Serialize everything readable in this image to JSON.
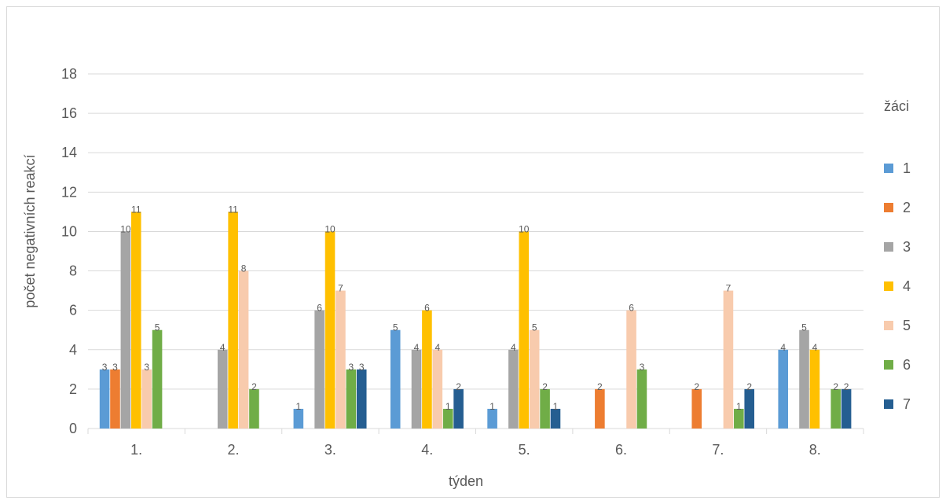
{
  "chart_data": {
    "type": "bar",
    "title": "",
    "xlabel": "týden",
    "ylabel": "počet negativních reakcí",
    "ylim": [
      0,
      18
    ],
    "yticks": [
      0,
      2,
      4,
      6,
      8,
      10,
      12,
      14,
      16,
      18
    ],
    "grid": true,
    "legend_title": "žáci",
    "legend_position": "right",
    "categories": [
      "1.",
      "2.",
      "3.",
      "4.",
      "5.",
      "6.",
      "7.",
      "8."
    ],
    "series": [
      {
        "name": "1",
        "color": "#5b9bd5",
        "values": [
          3,
          0,
          1,
          5,
          1,
          0,
          0,
          4
        ]
      },
      {
        "name": "2",
        "color": "#ed7d31",
        "values": [
          3,
          0,
          0,
          0,
          0,
          2,
          2,
          0
        ]
      },
      {
        "name": "3",
        "color": "#a5a5a5",
        "values": [
          10,
          4,
          6,
          4,
          4,
          0,
          0,
          5
        ]
      },
      {
        "name": "4",
        "color": "#ffc000",
        "values": [
          11,
          11,
          10,
          6,
          10,
          0,
          0,
          4
        ]
      },
      {
        "name": "5",
        "color": "#f8cbad",
        "values": [
          3,
          8,
          7,
          4,
          5,
          6,
          7,
          0
        ]
      },
      {
        "name": "6",
        "color": "#70ad47",
        "values": [
          5,
          2,
          3,
          1,
          2,
          3,
          1,
          2
        ]
      },
      {
        "name": "7",
        "color": "#255e91",
        "values": [
          0,
          0,
          3,
          2,
          1,
          0,
          2,
          2
        ]
      }
    ]
  }
}
